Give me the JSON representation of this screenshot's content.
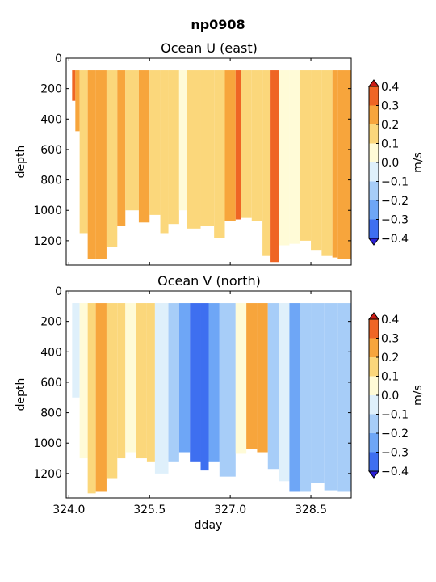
{
  "figure_title": "np0908",
  "colorbar": {
    "label": "m/s",
    "levels": [
      -0.4,
      -0.3,
      -0.2,
      -0.1,
      0.0,
      0.1,
      0.2,
      0.3,
      0.4
    ],
    "tick_labels": [
      "−0.4",
      "−0.3",
      "−0.2",
      "−0.1",
      "0.0",
      "0.1",
      "0.2",
      "0.3",
      "0.4"
    ],
    "colors": [
      "#2a1fd6",
      "#3e6ff0",
      "#6ea6f6",
      "#a7cdf8",
      "#dff0fb",
      "#fffbd7",
      "#fbd77b",
      "#f7a53c",
      "#ef6524",
      "#cc1b14"
    ],
    "extend": "both"
  },
  "chart_data": [
    {
      "type": "heatmap",
      "title": "Ocean U (east)",
      "xlabel": "",
      "ylabel": "depth",
      "xlim": [
        323.95,
        329.25
      ],
      "ylim": [
        1360,
        0
      ],
      "xticks": [
        324.0,
        325.5,
        327.0,
        328.5
      ],
      "xtick_labels": [
        "",
        "",
        "",
        ""
      ],
      "yticks": [
        0,
        200,
        400,
        600,
        800,
        1000,
        1200
      ],
      "ytick_labels": [
        "0",
        "200",
        "400",
        "600",
        "800",
        "1000",
        "1200"
      ],
      "top_depth": 80,
      "segments": [
        {
          "x0": 324.06,
          "x1": 324.12,
          "bottom": 280,
          "value": 0.32
        },
        {
          "x0": 324.12,
          "x1": 324.2,
          "bottom": 480,
          "value": 0.27
        },
        {
          "x0": 324.2,
          "x1": 324.35,
          "bottom": 1150,
          "value": 0.18
        },
        {
          "x0": 324.35,
          "x1": 324.5,
          "bottom": 1320,
          "value": 0.28
        },
        {
          "x0": 324.5,
          "x1": 324.7,
          "bottom": 1320,
          "value": 0.22
        },
        {
          "x0": 324.7,
          "x1": 324.9,
          "bottom": 1240,
          "value": 0.18
        },
        {
          "x0": 324.9,
          "x1": 325.05,
          "bottom": 1100,
          "value": 0.23
        },
        {
          "x0": 325.05,
          "x1": 325.3,
          "bottom": 1000,
          "value": 0.16
        },
        {
          "x0": 325.3,
          "x1": 325.5,
          "bottom": 1080,
          "value": 0.21
        },
        {
          "x0": 325.5,
          "x1": 325.7,
          "bottom": 1030,
          "value": 0.15
        },
        {
          "x0": 325.7,
          "x1": 325.85,
          "bottom": 1150,
          "value": 0.12
        },
        {
          "x0": 325.85,
          "x1": 326.05,
          "bottom": 1090,
          "value": 0.11
        },
        {
          "x0": 326.05,
          "x1": 326.2,
          "bottom": 1000,
          "value": 0.06
        },
        {
          "x0": 326.2,
          "x1": 326.45,
          "bottom": 1120,
          "value": 0.17
        },
        {
          "x0": 326.45,
          "x1": 326.7,
          "bottom": 1100,
          "value": 0.13
        },
        {
          "x0": 326.7,
          "x1": 326.9,
          "bottom": 1180,
          "value": 0.18
        },
        {
          "x0": 326.9,
          "x1": 327.1,
          "bottom": 1070,
          "value": 0.28
        },
        {
          "x0": 327.1,
          "x1": 327.2,
          "bottom": 1060,
          "value": 0.34
        },
        {
          "x0": 327.2,
          "x1": 327.4,
          "bottom": 1050,
          "value": 0.19
        },
        {
          "x0": 327.4,
          "x1": 327.6,
          "bottom": 1070,
          "value": 0.14
        },
        {
          "x0": 327.6,
          "x1": 327.75,
          "bottom": 1300,
          "value": 0.16
        },
        {
          "x0": 327.75,
          "x1": 327.9,
          "bottom": 1340,
          "value": 0.3
        },
        {
          "x0": 327.9,
          "x1": 328.1,
          "bottom": 1230,
          "value": 0.04
        },
        {
          "x0": 328.1,
          "x1": 328.3,
          "bottom": 1220,
          "value": 0.06
        },
        {
          "x0": 328.3,
          "x1": 328.5,
          "bottom": 1200,
          "value": 0.11
        },
        {
          "x0": 328.5,
          "x1": 328.7,
          "bottom": 1260,
          "value": 0.17
        },
        {
          "x0": 328.7,
          "x1": 328.9,
          "bottom": 1300,
          "value": 0.14
        },
        {
          "x0": 328.9,
          "x1": 329.0,
          "bottom": 1310,
          "value": 0.27
        },
        {
          "x0": 329.0,
          "x1": 329.25,
          "bottom": 1320,
          "value": 0.2
        }
      ]
    },
    {
      "type": "heatmap",
      "title": "Ocean V (north)",
      "xlabel": "dday",
      "ylabel": "depth",
      "xlim": [
        323.95,
        329.25
      ],
      "ylim": [
        1360,
        0
      ],
      "xticks": [
        324.0,
        325.5,
        327.0,
        328.5
      ],
      "xtick_labels": [
        "324.0",
        "325.5",
        "327.0",
        "328.5"
      ],
      "yticks": [
        0,
        200,
        400,
        600,
        800,
        1000,
        1200
      ],
      "ytick_labels": [
        "0",
        "200",
        "400",
        "600",
        "800",
        "1000",
        "1200"
      ],
      "top_depth": 80,
      "segments": [
        {
          "x0": 324.06,
          "x1": 324.2,
          "bottom": 700,
          "value": -0.08
        },
        {
          "x0": 324.2,
          "x1": 324.35,
          "bottom": 1100,
          "value": 0.08
        },
        {
          "x0": 324.35,
          "x1": 324.5,
          "bottom": 1330,
          "value": 0.16
        },
        {
          "x0": 324.5,
          "x1": 324.7,
          "bottom": 1320,
          "value": 0.22
        },
        {
          "x0": 324.7,
          "x1": 324.9,
          "bottom": 1230,
          "value": 0.14
        },
        {
          "x0": 324.9,
          "x1": 325.05,
          "bottom": 1100,
          "value": 0.19
        },
        {
          "x0": 325.05,
          "x1": 325.25,
          "bottom": 1060,
          "value": 0.04
        },
        {
          "x0": 325.25,
          "x1": 325.45,
          "bottom": 1100,
          "value": 0.13
        },
        {
          "x0": 325.45,
          "x1": 325.6,
          "bottom": 1120,
          "value": 0.1
        },
        {
          "x0": 325.6,
          "x1": 325.85,
          "bottom": 1200,
          "value": -0.05
        },
        {
          "x0": 325.85,
          "x1": 326.05,
          "bottom": 1120,
          "value": -0.14
        },
        {
          "x0": 326.05,
          "x1": 326.25,
          "bottom": 1060,
          "value": -0.22
        },
        {
          "x0": 326.25,
          "x1": 326.45,
          "bottom": 1120,
          "value": -0.32
        },
        {
          "x0": 326.45,
          "x1": 326.6,
          "bottom": 1180,
          "value": -0.36
        },
        {
          "x0": 326.6,
          "x1": 326.8,
          "bottom": 1120,
          "value": -0.28
        },
        {
          "x0": 326.8,
          "x1": 327.1,
          "bottom": 1220,
          "value": -0.15
        },
        {
          "x0": 327.1,
          "x1": 327.3,
          "bottom": 1070,
          "value": 0.07
        },
        {
          "x0": 327.3,
          "x1": 327.5,
          "bottom": 1040,
          "value": 0.26
        },
        {
          "x0": 327.5,
          "x1": 327.7,
          "bottom": 1060,
          "value": 0.28
        },
        {
          "x0": 327.7,
          "x1": 327.9,
          "bottom": 1170,
          "value": -0.12
        },
        {
          "x0": 327.9,
          "x1": 328.1,
          "bottom": 1250,
          "value": -0.08
        },
        {
          "x0": 328.1,
          "x1": 328.3,
          "bottom": 1320,
          "value": -0.27
        },
        {
          "x0": 328.3,
          "x1": 328.5,
          "bottom": 1320,
          "value": -0.16
        },
        {
          "x0": 328.5,
          "x1": 328.75,
          "bottom": 1260,
          "value": -0.13
        },
        {
          "x0": 328.75,
          "x1": 329.0,
          "bottom": 1310,
          "value": -0.15
        },
        {
          "x0": 329.0,
          "x1": 329.25,
          "bottom": 1320,
          "value": -0.12
        }
      ]
    }
  ]
}
